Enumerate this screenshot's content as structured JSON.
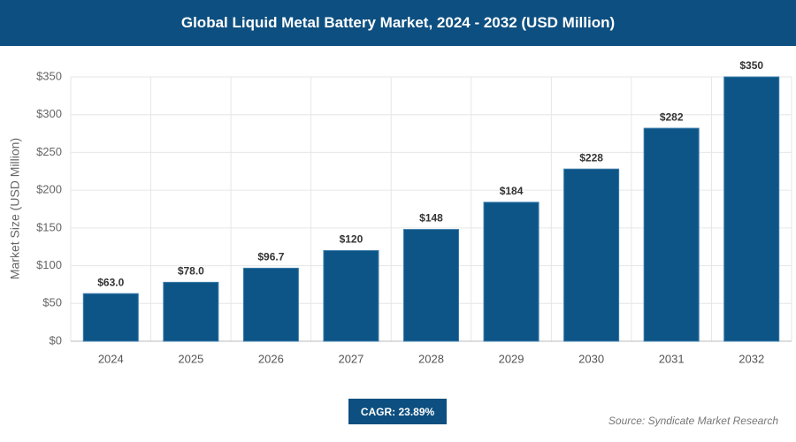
{
  "chart_data": {
    "type": "bar",
    "title": "Global Liquid Metal Battery Market, 2024 - 2032 (USD Million)",
    "y_label": "Market Size (USD Million)",
    "categories": [
      "2024",
      "2025",
      "2026",
      "2027",
      "2028",
      "2029",
      "2030",
      "2031",
      "2032"
    ],
    "values": [
      63,
      78,
      96.7,
      120,
      148,
      184,
      228,
      282,
      350
    ],
    "value_labels": [
      "$63.0",
      "$78.0",
      "$96.7",
      "$120",
      "$148",
      "$184",
      "$228",
      "$282",
      "$350"
    ],
    "color": "#0d5587",
    "ylim": [
      0,
      350
    ],
    "yticks": [
      {
        "value": 0,
        "label": "$0"
      },
      {
        "value": 50,
        "label": "$50"
      },
      {
        "value": 100,
        "label": "$100"
      },
      {
        "value": 150,
        "label": "$150"
      },
      {
        "value": 200,
        "label": "$200"
      },
      {
        "value": 250,
        "label": "$250"
      },
      {
        "value": 300,
        "label": "$300"
      },
      {
        "value": 350,
        "label": "$350"
      }
    ],
    "grid": true,
    "cagr_label": "CAGR: 23.89%",
    "source": "Source: Syndicate Market Research"
  }
}
